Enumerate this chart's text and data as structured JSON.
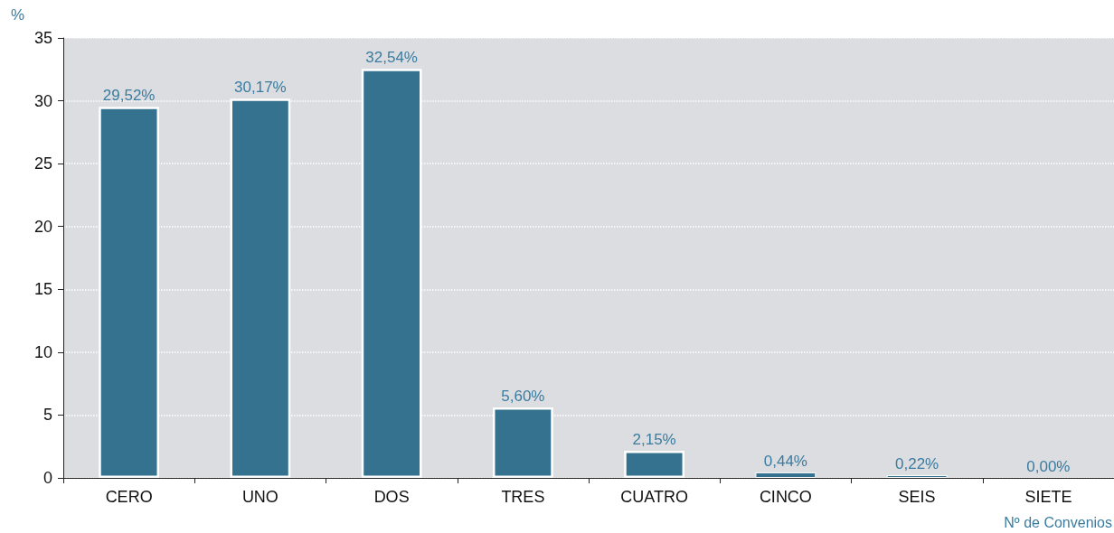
{
  "chart_data": {
    "type": "bar",
    "ylabel": "%",
    "xlabel": "Nº de Convenios",
    "categories": [
      "CERO",
      "UNO",
      "DOS",
      "TRES",
      "CUATRO",
      "CINCO",
      "SEIS",
      "SIETE"
    ],
    "values": [
      29.52,
      30.17,
      32.54,
      5.6,
      2.15,
      0.44,
      0.22,
      0
    ],
    "value_labels": [
      "29,52%",
      "30,17%",
      "32,54%",
      "5,60%",
      "2,15%",
      "0,44%",
      "0,22%",
      "0,00%"
    ],
    "color": "#34728f",
    "ylim": [
      0,
      35
    ],
    "yticks": [
      0,
      5,
      10,
      15,
      20,
      25,
      30,
      35
    ],
    "grid": "y"
  }
}
